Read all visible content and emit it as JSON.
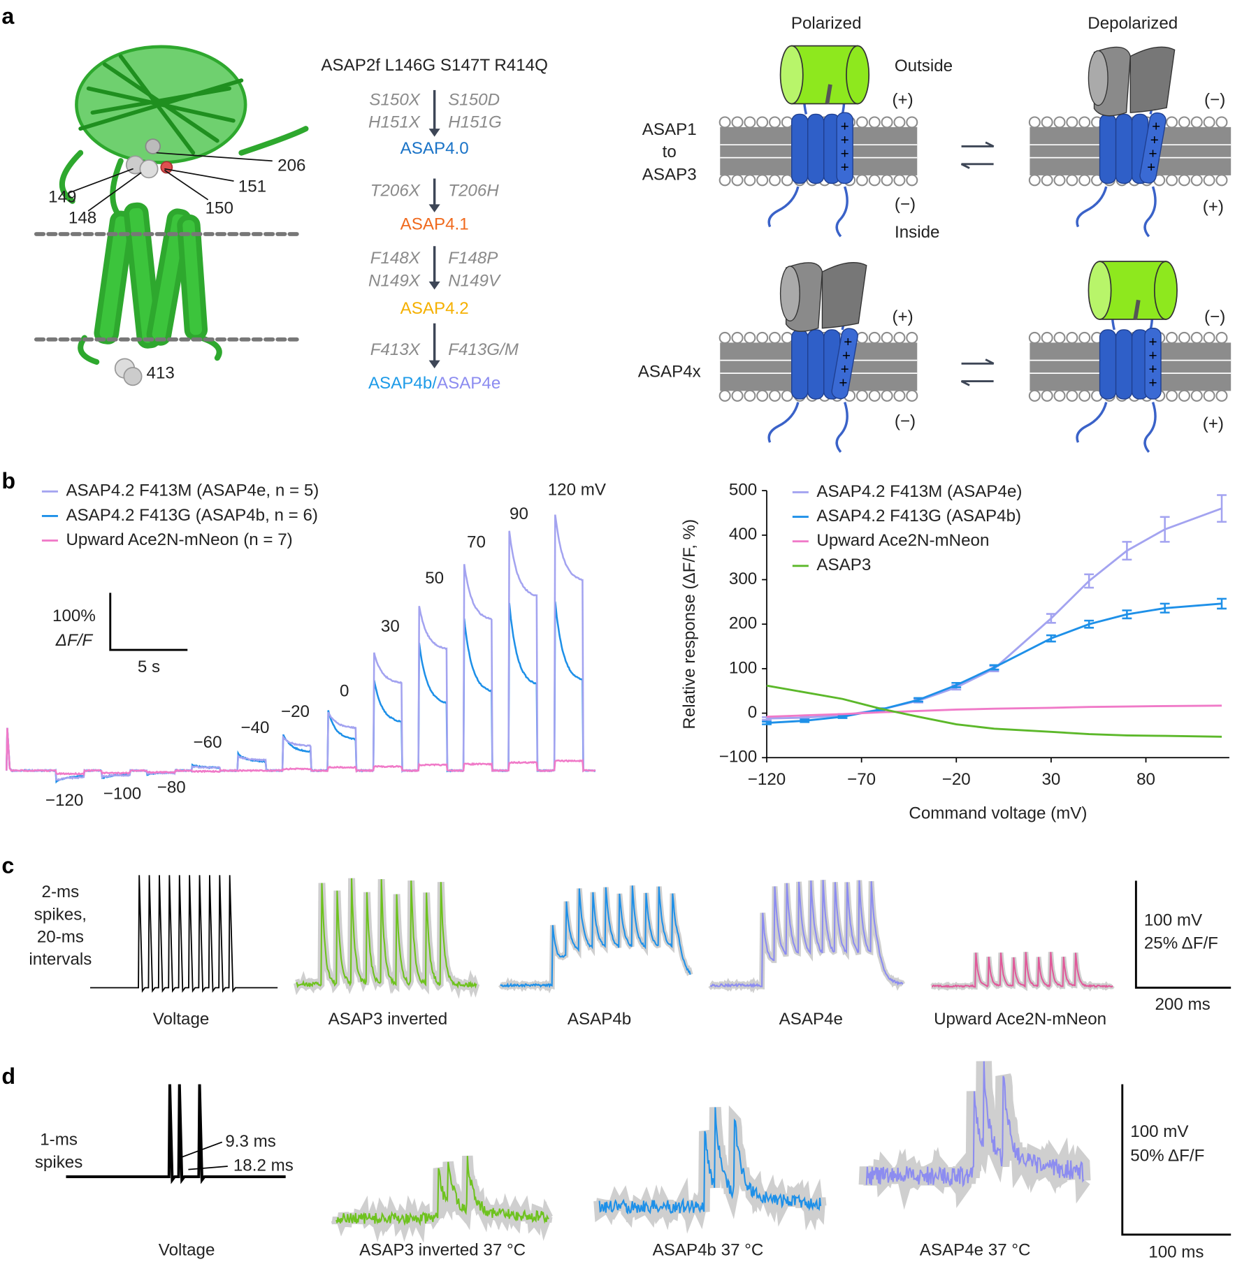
{
  "panels": {
    "a": "a",
    "b": "b",
    "c": "c",
    "d": "d"
  },
  "structure": {
    "residues": [
      "206",
      "151",
      "149",
      "150",
      "148",
      "413"
    ]
  },
  "lineage": {
    "parent": "ASAP2f L146G S147T R414Q",
    "steps": [
      {
        "random": [
          "S150X",
          "H151X"
        ],
        "chosen": [
          "S150D",
          "H151G"
        ],
        "result": [
          "ASAP4.0"
        ],
        "colors": [
          "#1a73c7"
        ]
      },
      {
        "random": [
          "T206X"
        ],
        "chosen": [
          "T206H"
        ],
        "result": [
          "ASAP4.1"
        ],
        "colors": [
          "#f06a1e"
        ]
      },
      {
        "random": [
          "F148X",
          "N149X"
        ],
        "chosen": [
          "F148P",
          "N149V"
        ],
        "result": [
          "ASAP4.2"
        ],
        "colors": [
          "#f5b000"
        ]
      },
      {
        "random": [
          "F413X"
        ],
        "chosen": [
          "F413G/M"
        ],
        "result": [
          "ASAP4b/",
          "ASAP4e"
        ],
        "colors": [
          "#1e9be8",
          "#8c8cf0"
        ]
      }
    ]
  },
  "mechanism": {
    "states": [
      "Polarized",
      "Depolarized"
    ],
    "outside": "Outside",
    "inside": "Inside",
    "gating_charge": "+",
    "rows": [
      {
        "label": [
          "ASAP1",
          "to",
          "ASAP3"
        ],
        "charges": [
          "(+)",
          "(−)",
          "(−)",
          "(+)"
        ]
      },
      {
        "label": [
          "ASAP4x"
        ],
        "charges": [
          "(+)",
          "(−)",
          "(−)",
          "(+)"
        ]
      }
    ]
  },
  "traces_b": {
    "legend": [
      "ASAP4.2 F413M (ASAP4e, n = 5)",
      "ASAP4.2 F413G (ASAP4b, n = 6)",
      "Upward Ace2N-mNeon (n = 7)"
    ],
    "colors": [
      "#a3a3f0",
      "#1e90e8",
      "#f07ac8"
    ],
    "voltages": [
      "−120",
      "−100",
      "−80",
      "−60",
      "−40",
      "−20",
      "0",
      "30",
      "50",
      "70",
      "90",
      "120 mV"
    ],
    "scale_y": [
      "100%",
      "ΔF/F"
    ],
    "scale_x": "5 s"
  },
  "chart_data": {
    "type": "line",
    "xlabel": "Command voltage (mV)",
    "ylabel": "Relative response (ΔF/F, %)",
    "x": [
      -120,
      -100,
      -80,
      -60,
      -40,
      -20,
      0,
      30,
      50,
      70,
      90,
      120
    ],
    "series": [
      {
        "name": "ASAP4.2 F413M (ASAP4e)",
        "color": "#a3a3f0",
        "values": [
          -12,
          -10,
          -5,
          8,
          28,
          58,
          100,
          213,
          297,
          365,
          413,
          460
        ],
        "errors": [
          3,
          3,
          3,
          3,
          4,
          5,
          6,
          10,
          15,
          20,
          28,
          30
        ]
      },
      {
        "name": "ASAP4.2 F413G (ASAP4b)",
        "color": "#1e90e8",
        "values": [
          -22,
          -17,
          -8,
          8,
          30,
          63,
          103,
          168,
          200,
          222,
          236,
          246
        ],
        "errors": [
          3,
          3,
          3,
          3,
          4,
          5,
          5,
          7,
          8,
          9,
          10,
          11
        ]
      },
      {
        "name": "Upward Ace2N-mNeon",
        "color": "#f07ac8",
        "values": [
          -8,
          -5,
          -2,
          2,
          5,
          8,
          10,
          12,
          14,
          15,
          16,
          17
        ]
      },
      {
        "name": "ASAP3",
        "color": "#5cb82a",
        "values": [
          62,
          47,
          32,
          10,
          -8,
          -25,
          -35,
          -42,
          -47,
          -50,
          -51,
          -53
        ]
      }
    ],
    "xlim": [
      -120,
      124
    ],
    "ylim": [
      -100,
      500
    ],
    "xticks": [
      {
        "value": -120,
        "label": "−120"
      },
      {
        "value": -70,
        "label": "−70"
      },
      {
        "value": -20,
        "label": "−20"
      },
      30,
      80
    ],
    "yticks": [
      {
        "value": -100,
        "label": "−100"
      },
      0,
      100,
      200,
      300,
      400,
      500
    ],
    "legend": "upper left"
  },
  "panel_c": {
    "protocol": [
      "2-ms",
      "spikes,",
      "20-ms",
      "intervals"
    ],
    "traces": [
      {
        "name": "Voltage",
        "color": "#000000"
      },
      {
        "name": "ASAP3 inverted",
        "color": "#6ec21e"
      },
      {
        "name": "ASAP4b",
        "color": "#1e90e8"
      },
      {
        "name": "ASAP4e",
        "color": "#8c8cf0"
      },
      {
        "name": "Upward Ace2N-mNeon",
        "color": "#e05a9a"
      }
    ],
    "scale": [
      "100 mV",
      "25% ΔF/F",
      "200 ms"
    ]
  },
  "panel_d": {
    "protocol": [
      "1-ms",
      "spikes"
    ],
    "intervals": [
      "9.3 ms",
      "18.2 ms"
    ],
    "traces": [
      {
        "name": "Voltage",
        "color": "#000000"
      },
      {
        "name": "ASAP3 inverted 37 °C",
        "color": "#6ec21e"
      },
      {
        "name": "ASAP4b 37 °C",
        "color": "#1e90e8"
      },
      {
        "name": "ASAP4e 37 °C",
        "color": "#8c8cf0"
      }
    ],
    "scale": [
      "100 mV",
      "50% ΔF/F",
      "100 ms"
    ]
  }
}
